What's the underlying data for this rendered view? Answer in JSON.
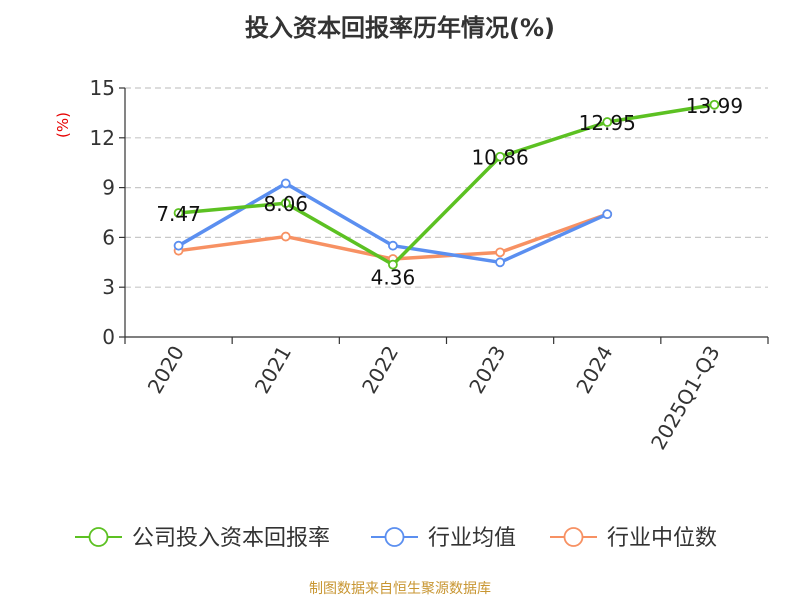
{
  "colors": {
    "company": "#5cc122",
    "industry_avg": "#5b8ff0",
    "industry_median": "#f79163",
    "title": "#333333",
    "ylabel": "#e60000",
    "footer": "#c89632",
    "grid": "#c8c8c8",
    "axis": "#333333"
  },
  "chart_data": {
    "type": "line",
    "title": "投入资本回报率历年情况(%)",
    "ylabel": "(%)",
    "xlabel": "",
    "categories": [
      "2020",
      "2021",
      "2022",
      "2023",
      "2024",
      "2025Q1-Q3"
    ],
    "ylim": [
      0,
      15
    ],
    "yticks": [
      0,
      3,
      6,
      9,
      12,
      15
    ],
    "grid": true,
    "legend_position": "bottom",
    "series": [
      {
        "name": "公司投入资本回报率",
        "values": [
          7.47,
          8.06,
          4.36,
          10.86,
          12.95,
          13.99
        ],
        "labels": [
          "7.47",
          "8.06",
          "4.36",
          "10.86",
          "12.95",
          "13.99"
        ]
      },
      {
        "name": "行业均值",
        "values": [
          5.5,
          9.25,
          5.5,
          4.5,
          7.4,
          null
        ]
      },
      {
        "name": "行业中位数",
        "values": [
          5.2,
          6.05,
          4.7,
          5.1,
          7.4,
          null
        ]
      }
    ]
  },
  "footer": "制图数据来自恒生聚源数据库"
}
